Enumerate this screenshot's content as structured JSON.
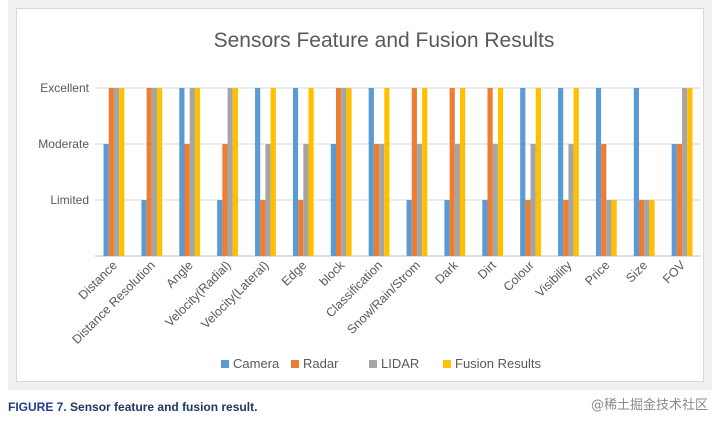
{
  "chart_data": {
    "type": "bar",
    "title": "Sensors Feature and Fusion Results",
    "categories": [
      "Distance",
      "Distance Resolution",
      "Angle",
      "Velocity(Radial)",
      "Velocity(Lateral)",
      "Edge",
      "block",
      "Classification",
      "Snow/Rain/Strom",
      "Dark",
      "Dirt",
      "Colour",
      "Visibility",
      "Price",
      "Size",
      "FOV"
    ],
    "y_tick_labels": [
      "Limited",
      "Moderate",
      "Excellent"
    ],
    "ylim": [
      0,
      3
    ],
    "grid": true,
    "legend_position": "bottom",
    "series": [
      {
        "name": "Camera",
        "color": "#5b9bd5",
        "values": [
          2,
          1,
          3,
          1,
          3,
          3,
          2,
          3,
          1,
          1,
          1,
          3,
          3,
          3,
          3,
          2
        ]
      },
      {
        "name": "Radar",
        "color": "#ed7d31",
        "values": [
          3,
          3,
          2,
          2,
          1,
          1,
          3,
          2,
          3,
          3,
          3,
          1,
          1,
          2,
          1,
          2
        ]
      },
      {
        "name": "LIDAR",
        "color": "#a5a5a5",
        "values": [
          3,
          3,
          3,
          3,
          2,
          2,
          3,
          2,
          2,
          2,
          2,
          2,
          2,
          1,
          1,
          3
        ]
      },
      {
        "name": "Fusion Results",
        "color": "#ffc000",
        "values": [
          3,
          3,
          3,
          3,
          3,
          3,
          3,
          3,
          3,
          3,
          3,
          3,
          3,
          1,
          1,
          3
        ]
      }
    ]
  },
  "caption": {
    "figure_label": "FIGURE 7.",
    "text": "Sensor feature and fusion result."
  },
  "watermark": "@稀土掘金技术社区"
}
